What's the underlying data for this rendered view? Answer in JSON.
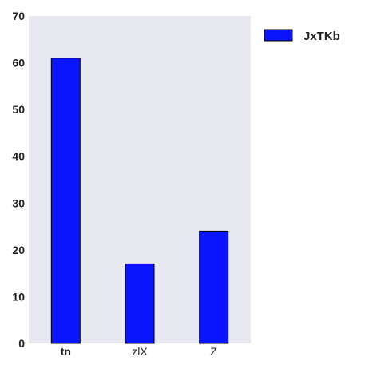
{
  "chart_data": {
    "type": "bar",
    "categories": [
      "tn",
      "zlX",
      "Z"
    ],
    "series": [
      {
        "name": "JxTKb",
        "values": [
          61,
          17,
          24
        ],
        "color": "#0a14ff"
      }
    ],
    "ylim": [
      0,
      70
    ],
    "yticks": [
      0,
      10,
      20,
      30,
      40,
      50,
      60,
      70
    ],
    "title": "",
    "xlabel": "",
    "ylabel": "",
    "grid": false,
    "legend_position": "outside-top-right",
    "plot_background": "#e8e8f0"
  }
}
